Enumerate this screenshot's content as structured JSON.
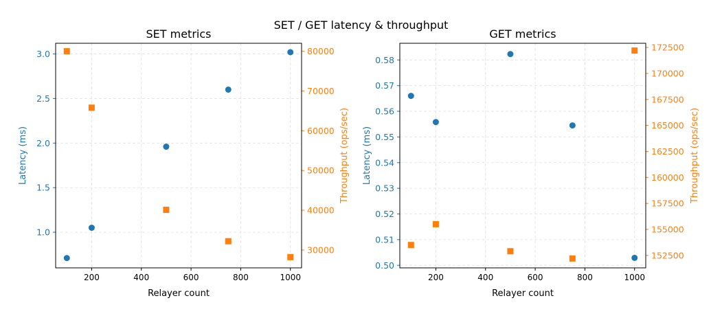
{
  "suptitle": "SET / GET latency & throughput",
  "colors": {
    "latency": "#1f77b4",
    "throughput": "#ff7f0e",
    "grid": "#e0e0e0",
    "axis": "#000000"
  },
  "chart_data": [
    {
      "type": "scatter",
      "title": "SET metrics",
      "xlabel": "Relayer count",
      "ylabel_left": "Latency (ms)",
      "ylabel_right": "Throughput (ops/sec)",
      "x": [
        100,
        200,
        500,
        750,
        1000
      ],
      "xlim": [
        55,
        1045
      ],
      "xticks": [
        200,
        400,
        600,
        800,
        1000
      ],
      "ylim_left": [
        0.6,
        3.12
      ],
      "yticks_left": [
        "1.0",
        "1.5",
        "2.0",
        "2.5",
        "3.0"
      ],
      "ylim_right": [
        25500,
        82000
      ],
      "yticks_right": [
        "30000",
        "40000",
        "50000",
        "60000",
        "70000",
        "80000"
      ],
      "grid": true,
      "series": [
        {
          "name": "Latency (ms)",
          "axis": "left",
          "marker": "circle",
          "values": [
            0.71,
            1.05,
            1.96,
            2.6,
            3.02
          ]
        },
        {
          "name": "Throughput (ops/sec)",
          "axis": "right",
          "marker": "square",
          "values": [
            80000,
            65800,
            40100,
            32200,
            28200
          ]
        }
      ]
    },
    {
      "type": "scatter",
      "title": "GET metrics",
      "xlabel": "Relayer count",
      "ylabel_left": "Latency (ms)",
      "ylabel_right": "Throughput (ops/sec)",
      "x": [
        100,
        200,
        500,
        750,
        1000
      ],
      "xlim": [
        55,
        1045
      ],
      "xticks": [
        200,
        400,
        600,
        800,
        1000
      ],
      "ylim_left": [
        0.499,
        0.5865
      ],
      "yticks_left": [
        "0.50",
        "0.51",
        "0.52",
        "0.53",
        "0.54",
        "0.55",
        "0.56",
        "0.57",
        "0.58"
      ],
      "ylim_right": [
        151300,
        172900
      ],
      "yticks_right": [
        "152500",
        "155000",
        "157500",
        "160000",
        "162500",
        "165000",
        "167500",
        "170000",
        "172500"
      ],
      "grid": true,
      "series": [
        {
          "name": "Latency (ms)",
          "axis": "left",
          "marker": "circle",
          "values": [
            0.566,
            0.5558,
            0.5823,
            0.5545,
            0.5029
          ]
        },
        {
          "name": "Throughput (ops/sec)",
          "axis": "right",
          "marker": "square",
          "values": [
            153500,
            155500,
            152900,
            152200,
            172200
          ]
        }
      ]
    }
  ]
}
